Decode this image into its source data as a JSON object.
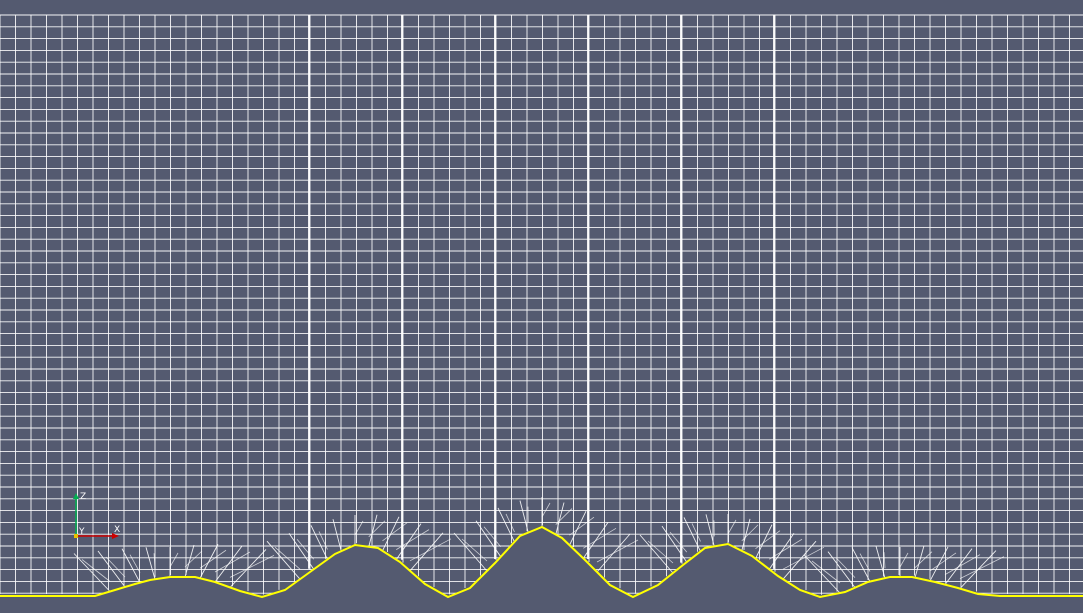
{
  "viewer": {
    "background_color": "#545a70",
    "mesh_line_color": "#ffffff",
    "surface_curve_color": "#ffff00"
  },
  "orientation_axes": {
    "z_label": "Z",
    "y_label": "Y",
    "x_label": "X",
    "x_color": "#cc0000",
    "y_color": "#e8c000",
    "z_color": "#00b050"
  }
}
